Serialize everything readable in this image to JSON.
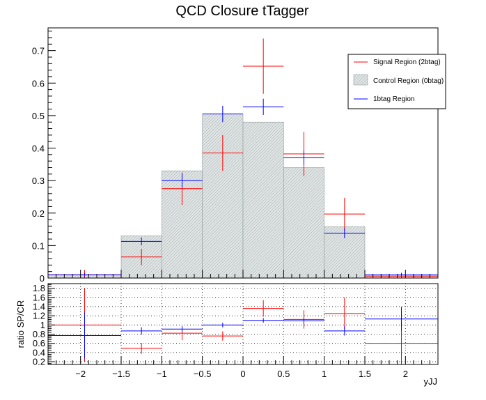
{
  "chart_data": {
    "title": "QCD Closure tTagger",
    "xlabel": "yJJ",
    "xlim": [
      -2.4,
      2.4
    ],
    "bin_edges": [
      -2.4,
      -1.5,
      -1.0,
      -0.5,
      0.0,
      0.5,
      1.0,
      1.5,
      2.4
    ],
    "top_panel": {
      "type": "histogram",
      "ylim": [
        0,
        0.77
      ],
      "yticks": [
        "0",
        "0.1",
        "0.2",
        "0.3",
        "0.4",
        "0.5",
        "0.6",
        "0.7"
      ],
      "control_region": {
        "name": "Control Region (0btag)",
        "color": "#c8cfcf",
        "values": [
          0.01,
          0.13,
          0.33,
          0.505,
          0.48,
          0.34,
          0.158,
          0.01
        ]
      },
      "series": [
        {
          "name": "Signal Region (2btag)",
          "color": "#ff0000",
          "x": [
            -1.95,
            -1.25,
            -0.75,
            -0.25,
            0.25,
            0.75,
            1.25,
            1.95
          ],
          "y": [
            0.01,
            0.065,
            0.275,
            0.385,
            0.652,
            0.382,
            0.197,
            0.006
          ],
          "yerr": [
            0.015,
            0.025,
            0.05,
            0.055,
            0.085,
            0.068,
            0.05,
            0.01
          ]
        },
        {
          "name": "1btag Region",
          "color": "#0000ff",
          "x": [
            -1.95,
            -1.25,
            -0.75,
            -0.25,
            0.25,
            0.75,
            1.25,
            1.95
          ],
          "y": [
            0.01,
            0.113,
            0.3,
            0.505,
            0.527,
            0.37,
            0.138,
            0.01
          ],
          "yerr": [
            0.005,
            0.012,
            0.022,
            0.025,
            0.025,
            0.022,
            0.015,
            0.005
          ]
        }
      ],
      "legend": [
        "Signal Region (2btag)",
        "Control Region (0btag)",
        "1btag Region"
      ],
      "legend_position": "top-right"
    },
    "ratio_panel": {
      "type": "ratio",
      "ylabel": "ratio SP/CR",
      "ylim": [
        0.14,
        1.9
      ],
      "yticks": [
        "0.2",
        "0.4",
        "0.6",
        "0.8",
        "1",
        "1.2",
        "1.4",
        "1.6",
        "1.8"
      ],
      "grid": true,
      "series": [
        {
          "name": "Signal Region (2btag)",
          "color": "#ff0000",
          "x": [
            -1.95,
            -1.25,
            -0.75,
            -0.25,
            0.25,
            0.75,
            1.25,
            1.95
          ],
          "y": [
            1.0,
            0.49,
            0.82,
            0.76,
            1.36,
            1.12,
            1.25,
            0.6
          ],
          "yerr": [
            0.8,
            0.12,
            0.15,
            0.1,
            0.18,
            0.2,
            0.35,
            0.8
          ]
        },
        {
          "name": "1btag Region",
          "color": "#0000ff",
          "x": [
            -1.95,
            -1.25,
            -0.75,
            -0.25,
            0.25,
            0.75,
            1.25,
            1.95
          ],
          "y": [
            0.77,
            0.87,
            0.91,
            1.0,
            1.1,
            1.09,
            0.87,
            1.13
          ],
          "yerr": [
            0.5,
            0.08,
            0.06,
            0.05,
            0.05,
            0.06,
            0.1,
            0.25
          ]
        }
      ]
    },
    "xticks": [
      "−2",
      "−1.5",
      "−1",
      "−0.5",
      "0",
      "0.5",
      "1",
      "1.5",
      "2"
    ],
    "xtick_values": [
      -2,
      -1.5,
      -1,
      -0.5,
      0,
      0.5,
      1,
      1.5,
      2
    ]
  }
}
